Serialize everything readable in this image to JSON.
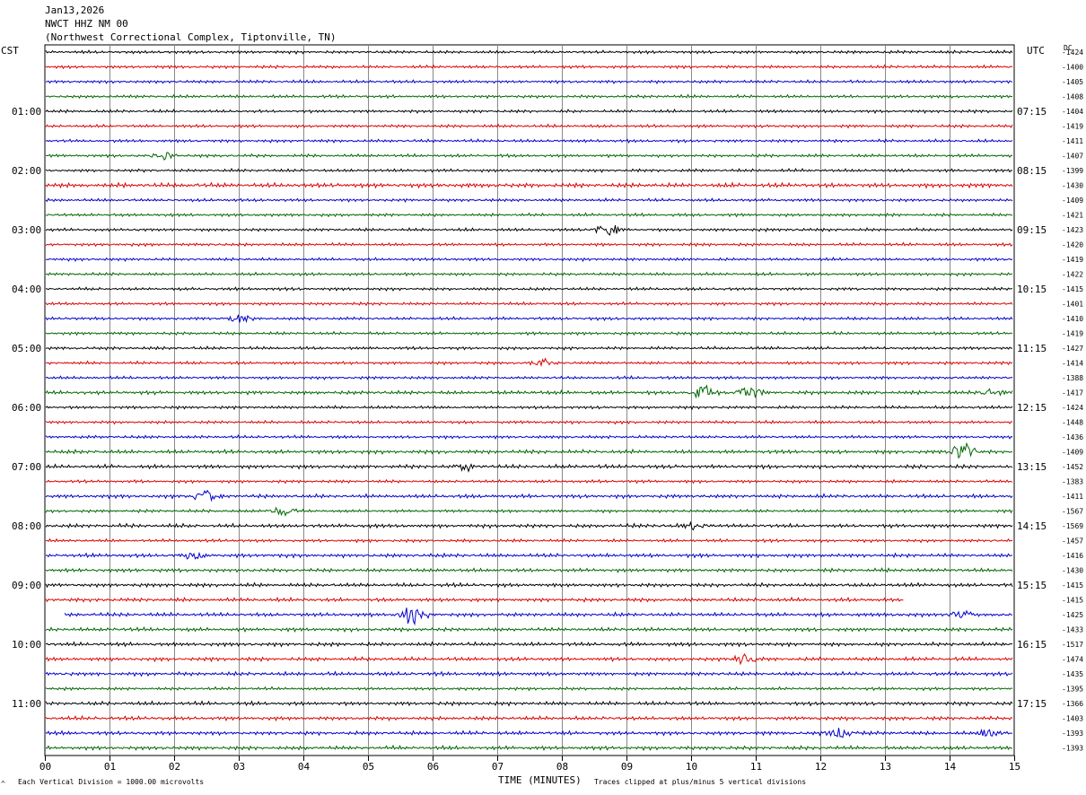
{
  "header": {
    "date": "Jan13,2026",
    "station": "NWCT HHZ NM 00",
    "location": "(Northwest Correctional Complex, Tiptonville, TN)"
  },
  "left_label": "CST",
  "right_label": "UTC",
  "dc_label": "DC",
  "footer": {
    "scale_note": "Each Vertical Division = 1000.00 microvolts",
    "clip_note": "Traces clipped at plus/minus 5 vertical divisions",
    "corner_mark": "^"
  },
  "colors": {
    "trace_cycle": [
      "#000000",
      "#dd0000",
      "#0000cc",
      "#006600"
    ],
    "grid": "#888888"
  },
  "chart_data": {
    "type": "line",
    "xlabel": "TIME (MINUTES)",
    "xlim": [
      0,
      15
    ],
    "x_ticks": [
      "00",
      "01",
      "02",
      "03",
      "04",
      "05",
      "06",
      "07",
      "08",
      "09",
      "10",
      "11",
      "12",
      "13",
      "14",
      "15"
    ],
    "rows_per_hour": 4,
    "local_hour_labels": [
      {
        "row": 4,
        "text": "01:00"
      },
      {
        "row": 8,
        "text": "02:00"
      },
      {
        "row": 12,
        "text": "03:00"
      },
      {
        "row": 16,
        "text": "04:00"
      },
      {
        "row": 20,
        "text": "05:00"
      },
      {
        "row": 24,
        "text": "06:00"
      },
      {
        "row": 28,
        "text": "07:00"
      },
      {
        "row": 32,
        "text": "08:00"
      },
      {
        "row": 36,
        "text": "09:00"
      },
      {
        "row": 40,
        "text": "10:00"
      },
      {
        "row": 44,
        "text": "11:00"
      }
    ],
    "utc_hour_labels": [
      {
        "row": 4,
        "text": "07:15"
      },
      {
        "row": 8,
        "text": "08:15"
      },
      {
        "row": 12,
        "text": "09:15"
      },
      {
        "row": 16,
        "text": "10:15"
      },
      {
        "row": 20,
        "text": "11:15"
      },
      {
        "row": 24,
        "text": "12:15"
      },
      {
        "row": 28,
        "text": "13:15"
      },
      {
        "row": 32,
        "text": "14:15"
      },
      {
        "row": 36,
        "text": "15:15"
      },
      {
        "row": 40,
        "text": "16:15"
      },
      {
        "row": 44,
        "text": "17:15"
      }
    ],
    "dc_offsets": [
      -1424,
      -1400,
      -1405,
      -1408,
      -1404,
      -1419,
      -1411,
      -1407,
      -1399,
      -1430,
      -1409,
      -1421,
      -1423,
      -1420,
      -1419,
      -1422,
      -1415,
      -1401,
      -1410,
      -1419,
      -1427,
      -1414,
      -1388,
      -1417,
      -1424,
      -1448,
      -1436,
      -1409,
      -1452,
      -1383,
      -1411,
      -1567,
      -1569,
      -1457,
      -1416,
      -1430,
      -1415,
      -1415,
      -1425,
      -1433,
      -1517,
      -1474,
      -1435,
      -1395,
      -1366,
      -1403,
      -1393,
      -1393
    ],
    "trace_amplitude": [
      2,
      2,
      2,
      2,
      2,
      2,
      2,
      2,
      2,
      3,
      2,
      2,
      2,
      2,
      2,
      2,
      2,
      2,
      2,
      2,
      2,
      2,
      2,
      2.5,
      2,
      2,
      2,
      2.5,
      2.5,
      2,
      2.5,
      2,
      2.5,
      2,
      2.5,
      2.5,
      2.5,
      2.5,
      2.5,
      2.5,
      2.5,
      2.5,
      2.5,
      2,
      2.5,
      2.5,
      2.5,
      2.5
    ],
    "events": [
      {
        "row": 7,
        "minute": 1.8,
        "amp": 5
      },
      {
        "row": 12,
        "minute": 8.7,
        "amp": 6
      },
      {
        "row": 18,
        "minute": 3.0,
        "amp": 4
      },
      {
        "row": 21,
        "minute": 7.7,
        "amp": 4
      },
      {
        "row": 23,
        "minute": 10.2,
        "amp": 8
      },
      {
        "row": 23,
        "minute": 10.9,
        "amp": 9
      },
      {
        "row": 23,
        "minute": 14.7,
        "amp": 5
      },
      {
        "row": 27,
        "minute": 14.2,
        "amp": 11
      },
      {
        "row": 28,
        "minute": 6.5,
        "amp": 4
      },
      {
        "row": 30,
        "minute": 2.5,
        "amp": 7
      },
      {
        "row": 31,
        "minute": 3.7,
        "amp": 5
      },
      {
        "row": 32,
        "minute": 10.0,
        "amp": 5
      },
      {
        "row": 34,
        "minute": 2.3,
        "amp": 5
      },
      {
        "row": 38,
        "minute": 5.7,
        "amp": 11
      },
      {
        "row": 38,
        "minute": 14.2,
        "amp": 5
      },
      {
        "row": 41,
        "minute": 10.8,
        "amp": 6
      },
      {
        "row": 46,
        "minute": 12.3,
        "amp": 6
      },
      {
        "row": 46,
        "minute": 14.6,
        "amp": 5
      }
    ],
    "trace_gaps": [
      {
        "row": 37,
        "from_minute": 13.3,
        "to_minute": 15
      },
      {
        "row": 38,
        "from_minute": 0,
        "to_minute": 0.3
      }
    ]
  }
}
